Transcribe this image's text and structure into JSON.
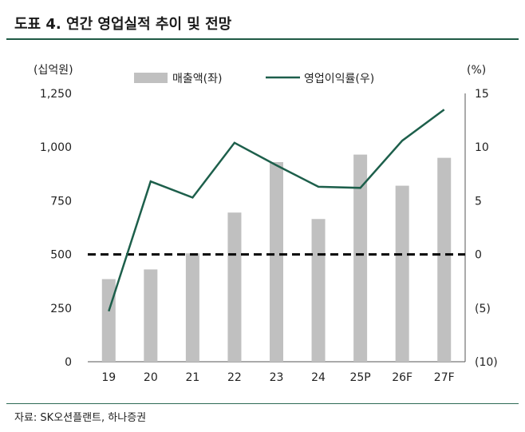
{
  "title": "도표 4. 연간 영업실적 추이 및 전망",
  "source": "자료: SK오션플랜트, 하나증권",
  "chart_data": {
    "type": "bar",
    "categories": [
      "19",
      "20",
      "21",
      "22",
      "23",
      "24",
      "25P",
      "26F",
      "27F"
    ],
    "series": [
      {
        "name": "매출액(좌)",
        "type": "bar",
        "axis": "left",
        "color": "#c0c0c0",
        "values": [
          385,
          430,
          505,
          695,
          930,
          665,
          965,
          820,
          950
        ]
      },
      {
        "name": "영업이익률(우)",
        "type": "line",
        "axis": "right",
        "color": "#1d5f4b",
        "values": [
          -5.3,
          6.8,
          5.3,
          10.4,
          8.3,
          6.3,
          6.2,
          10.6,
          13.5
        ]
      }
    ],
    "left_axis": {
      "label": "(십억원)",
      "range": [
        0,
        1250
      ],
      "ticks": [
        0,
        250,
        500,
        750,
        1000,
        1250
      ],
      "tick_labels": [
        "0",
        "250",
        "500",
        "750",
        "1,000",
        "1,250"
      ]
    },
    "right_axis": {
      "label": "(%)",
      "range": [
        -10,
        15
      ],
      "ticks": [
        -10,
        -5,
        0,
        5,
        10,
        15
      ],
      "tick_labels": [
        "(10)",
        "(5)",
        "0",
        "5",
        "10",
        "15"
      ]
    },
    "reference_line": {
      "axis": "right",
      "value": 0,
      "style": "dashed"
    },
    "legend_position": "top"
  }
}
